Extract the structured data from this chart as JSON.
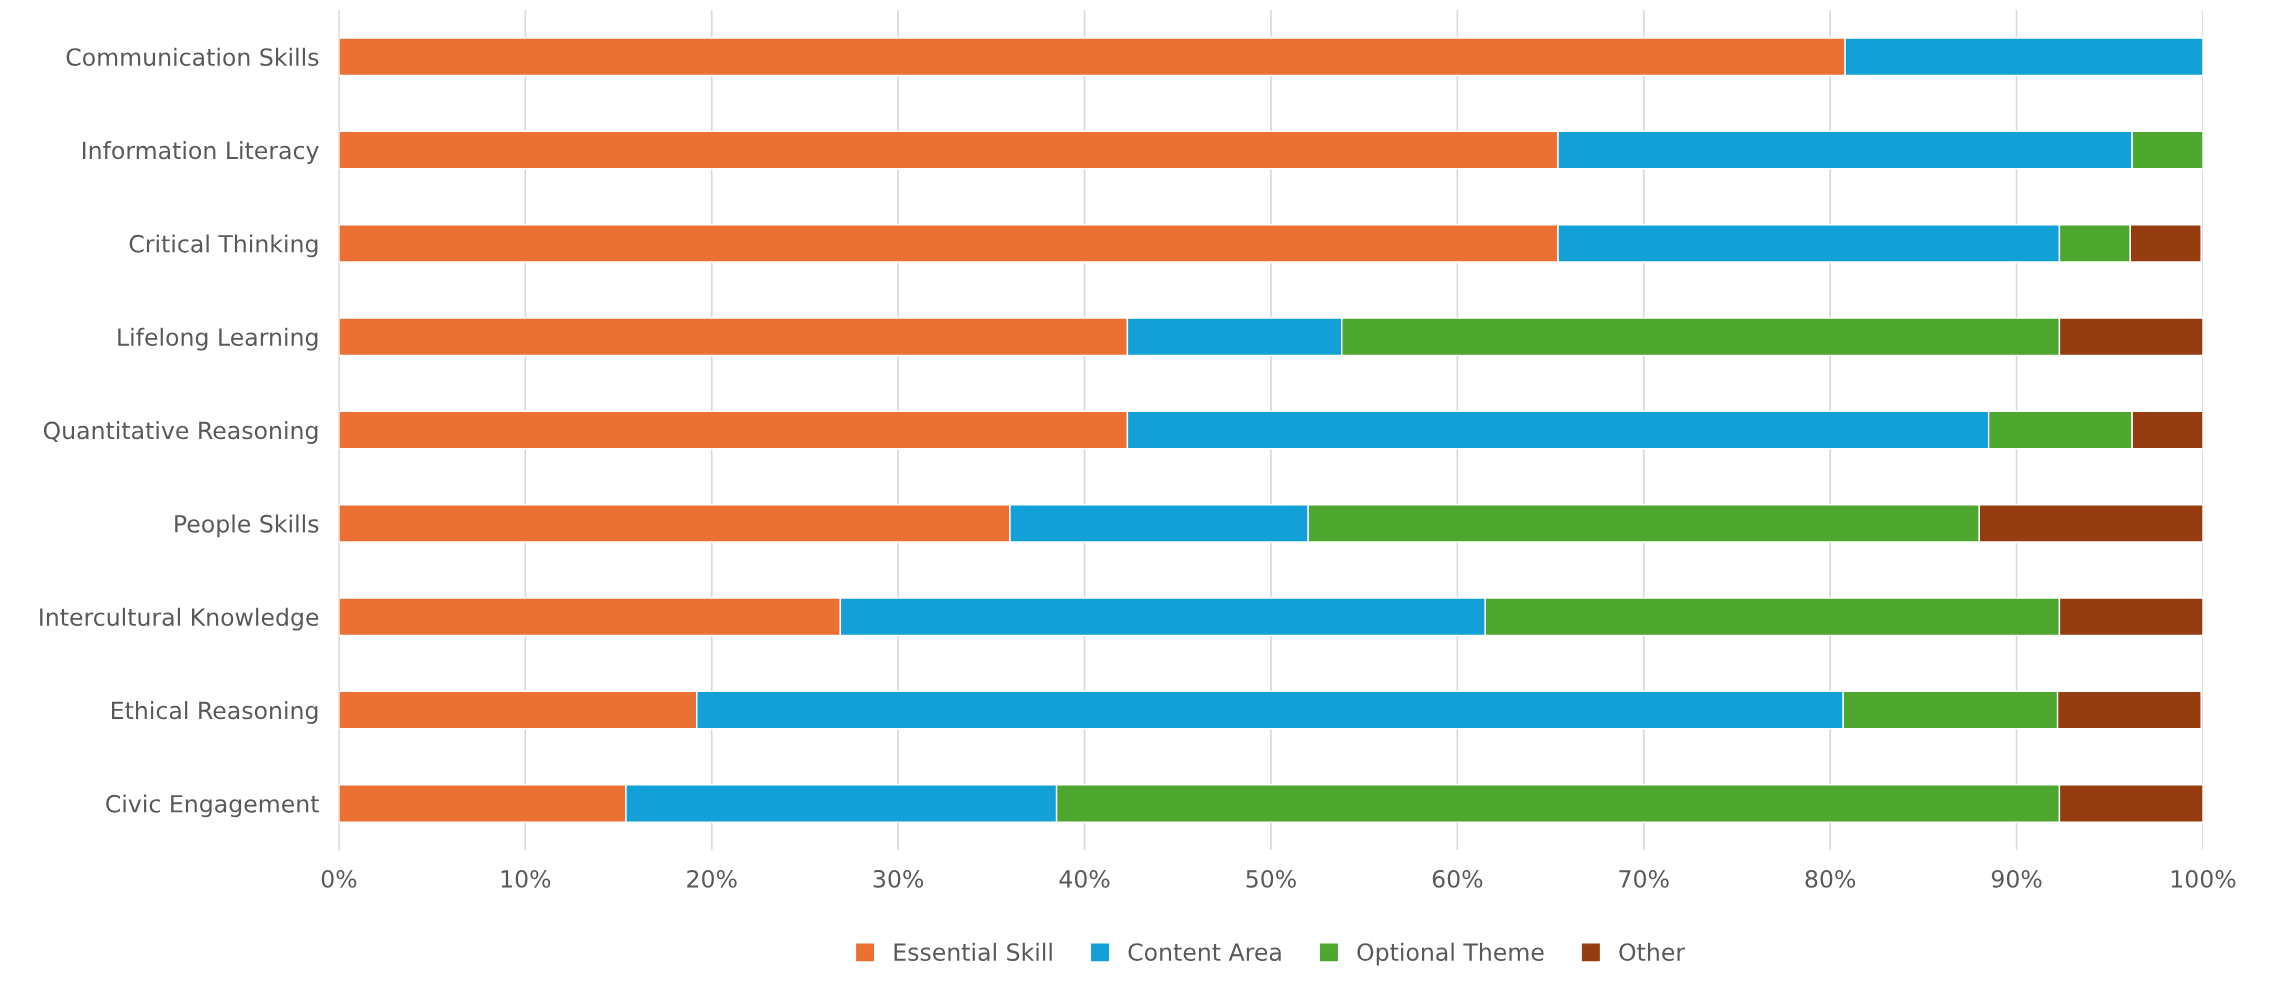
{
  "chart_data": {
    "type": "bar",
    "orientation": "horizontal",
    "stacked": true,
    "categories": [
      "Communication Skills",
      "Information Literacy",
      "Critical Thinking",
      "Lifelong Learning",
      "Quantitative Reasoning",
      "People Skills",
      "Intercultural Knowledge",
      "Ethical Reasoning",
      "Civic Engagement"
    ],
    "series": [
      {
        "name": "Essential Skill",
        "color": "#ea7034",
        "values": [
          80.8,
          65.4,
          65.4,
          42.3,
          42.3,
          36,
          26.9,
          19.2,
          15.4
        ]
      },
      {
        "name": "Content Area",
        "color": "#12a0d7",
        "values": [
          19.2,
          30.8,
          26.9,
          11.5,
          46.2,
          16,
          34.6,
          61.5,
          23.1
        ]
      },
      {
        "name": "Optional Theme",
        "color": "#4ea72e",
        "values": [
          null,
          3.8,
          3.8,
          38.5,
          7.7,
          36,
          30.8,
          11.5,
          53.8
        ]
      },
      {
        "name": "Other",
        "color": "#953d11",
        "values": [
          null,
          null,
          3.8,
          7.7,
          3.8,
          12,
          7.7,
          7.7,
          7.7
        ]
      }
    ],
    "xlim": [
      0,
      100
    ],
    "xticks": [
      {
        "value": 0,
        "label": "0%"
      },
      {
        "value": 10,
        "label": "10%"
      },
      {
        "value": 20,
        "label": "20%"
      },
      {
        "value": 30,
        "label": "30%"
      },
      {
        "value": 40,
        "label": "40%"
      },
      {
        "value": 50,
        "label": "50%"
      },
      {
        "value": 60,
        "label": "60%"
      },
      {
        "value": 70,
        "label": "70%"
      },
      {
        "value": 80,
        "label": "80%"
      },
      {
        "value": 90,
        "label": "90%"
      },
      {
        "value": 100,
        "label": "100%"
      }
    ],
    "grid": "x",
    "legend": "bottom"
  }
}
